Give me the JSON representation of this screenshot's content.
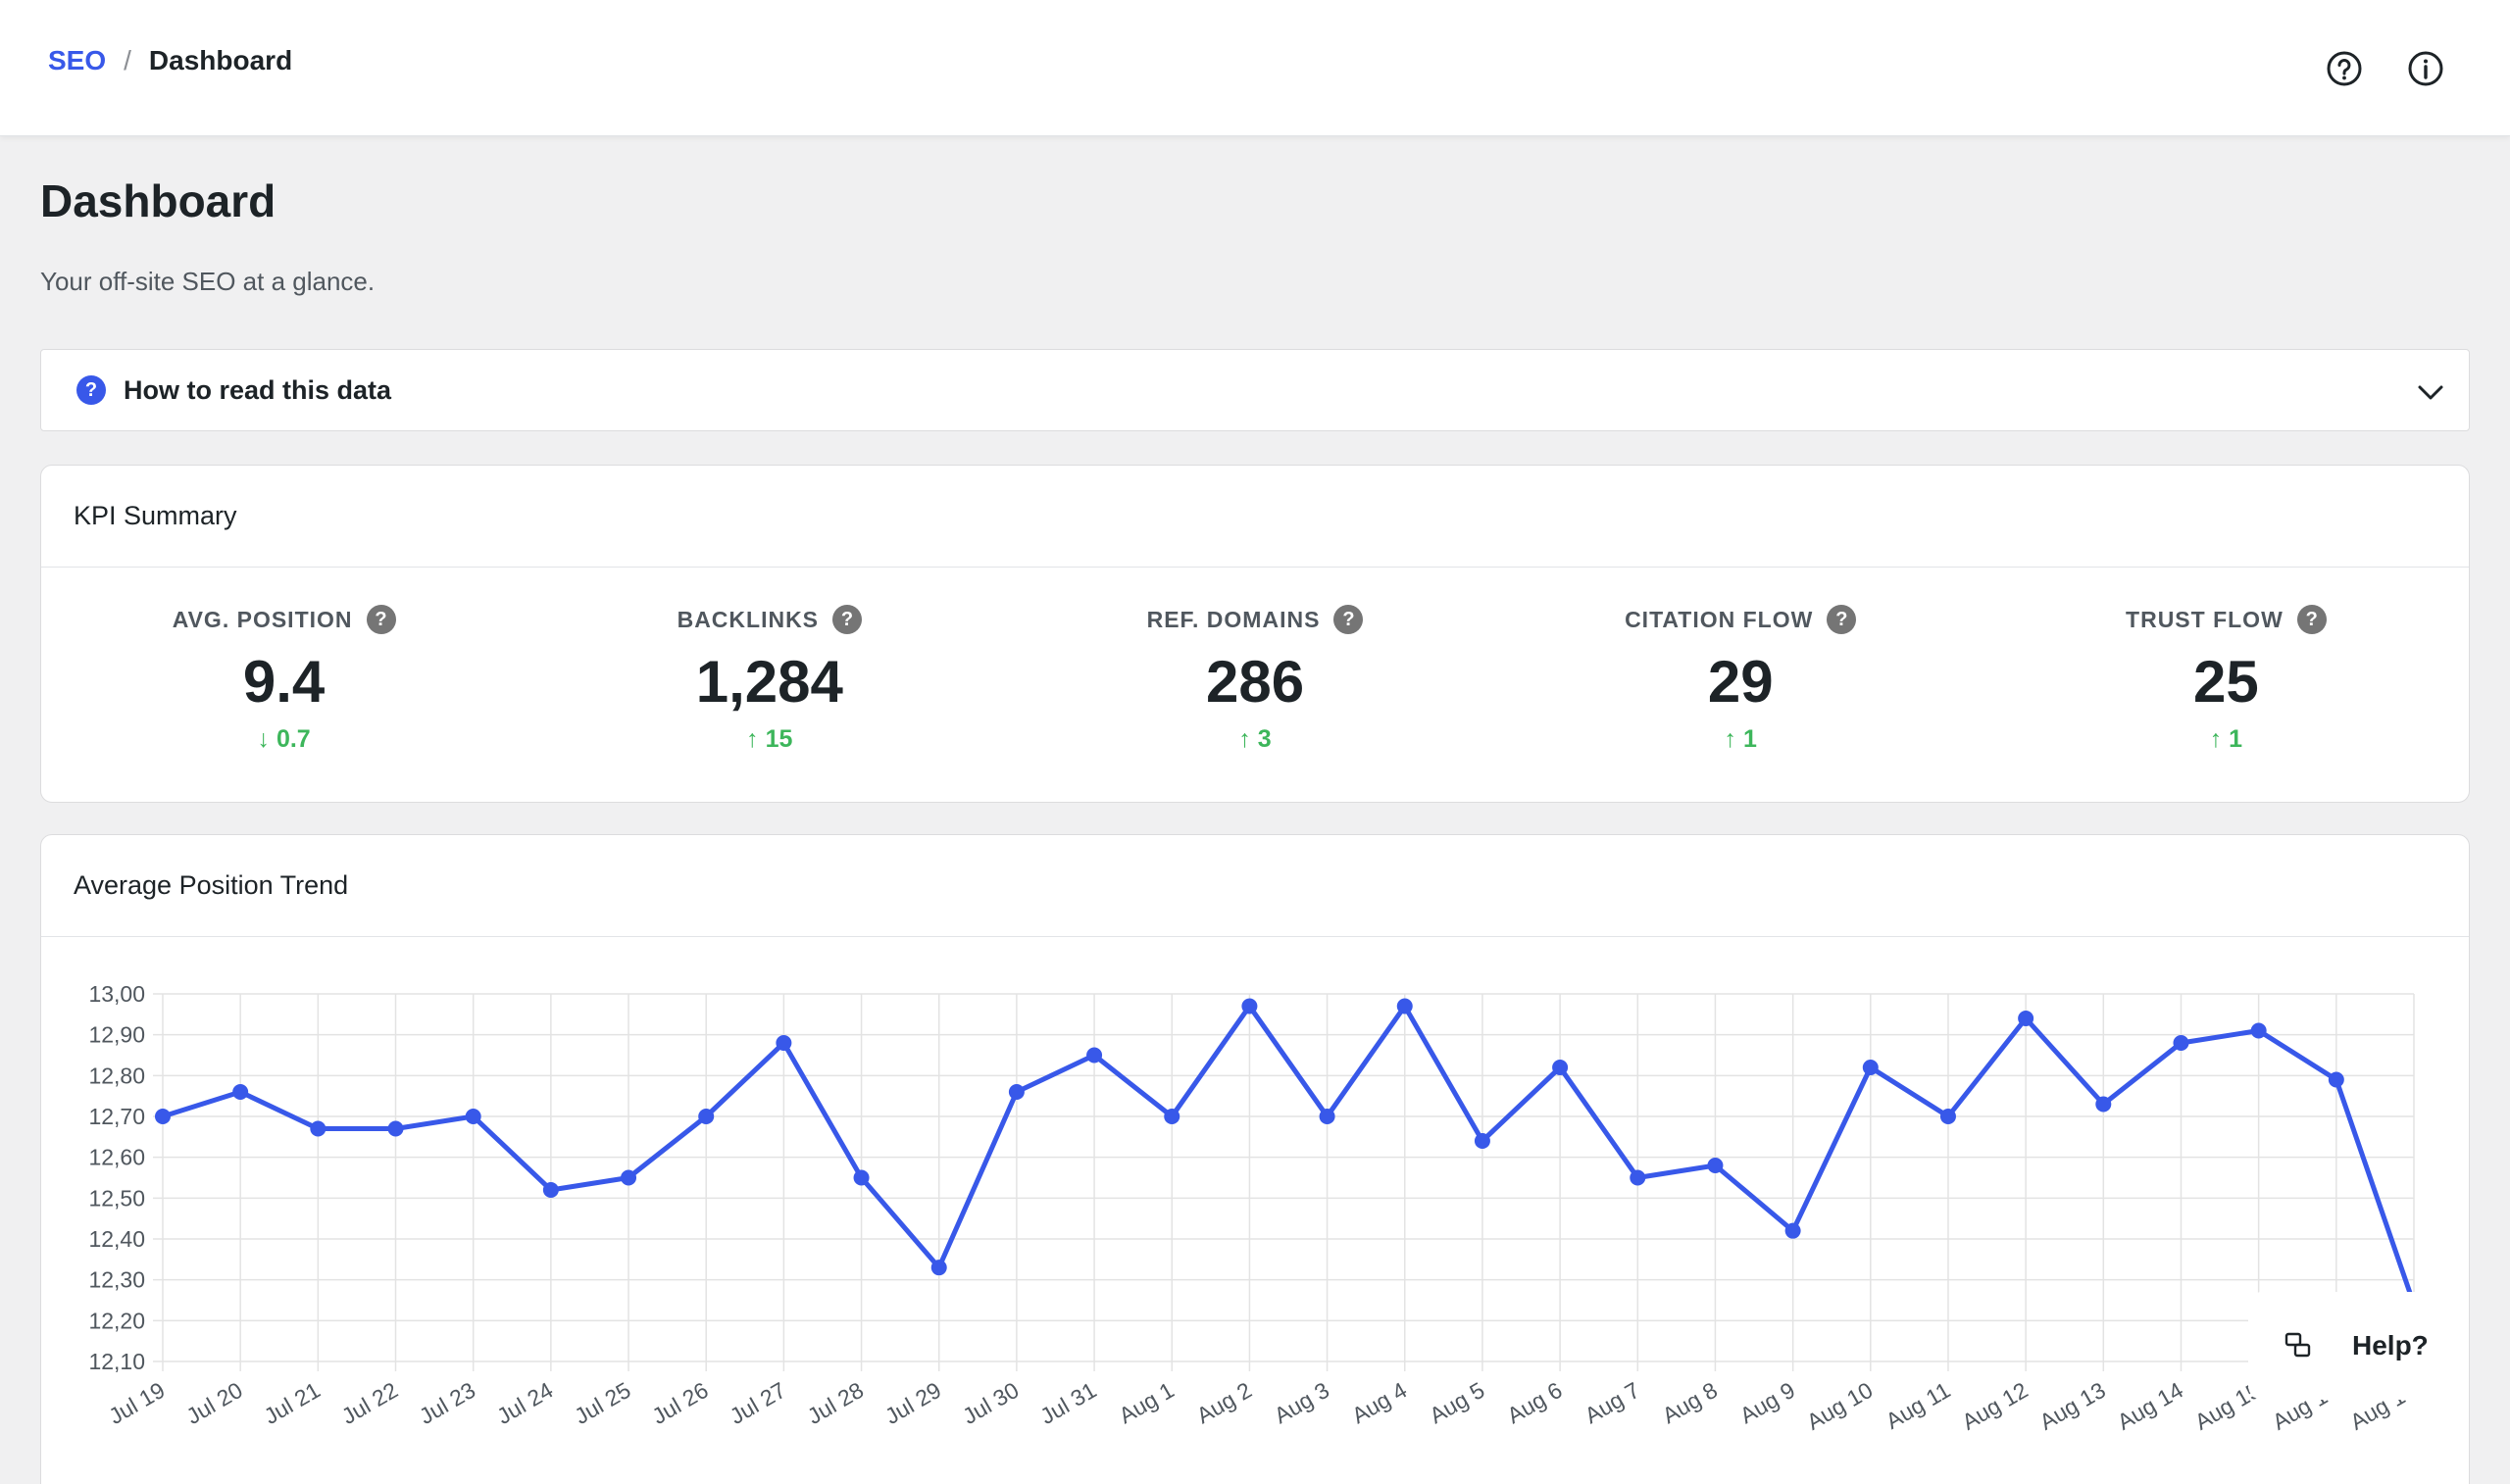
{
  "breadcrumb": {
    "root": "SEO",
    "separator": "/",
    "current": "Dashboard"
  },
  "page": {
    "title": "Dashboard",
    "subtitle": "Your off-site SEO at a glance."
  },
  "howto": {
    "label": "How to read this data"
  },
  "kpi": {
    "title": "KPI Summary",
    "items": [
      {
        "label": "AVG. POSITION",
        "value": "9.4",
        "delta": "↓ 0.7"
      },
      {
        "label": "BACKLINKS",
        "value": "1,284",
        "delta": "↑ 15"
      },
      {
        "label": "REF. DOMAINS",
        "value": "286",
        "delta": "↑ 3"
      },
      {
        "label": "CITATION FLOW",
        "value": "29",
        "delta": "↑ 1"
      },
      {
        "label": "TRUST FLOW",
        "value": "25",
        "delta": "↑ 1"
      }
    ]
  },
  "chart_card": {
    "title": "Average Position Trend"
  },
  "help_widget": {
    "label": "Help?"
  },
  "colors": {
    "accent": "#3858e9",
    "positive": "#3db65b"
  },
  "chart_data": {
    "type": "line",
    "categories": [
      "Jul 19",
      "Jul 20",
      "Jul 21",
      "Jul 22",
      "Jul 23",
      "Jul 24",
      "Jul 25",
      "Jul 26",
      "Jul 27",
      "Jul 28",
      "Jul 29",
      "Jul 30",
      "Jul 31",
      "Aug 1",
      "Aug 2",
      "Aug 3",
      "Aug 4",
      "Aug 5",
      "Aug 6",
      "Aug 7",
      "Aug 8",
      "Aug 9",
      "Aug 10",
      "Aug 11",
      "Aug 12",
      "Aug 13",
      "Aug 14",
      "Aug 15",
      "Aug 16",
      "Aug 17"
    ],
    "values": [
      12.7,
      12.76,
      12.67,
      12.67,
      12.7,
      12.52,
      12.55,
      12.7,
      12.88,
      12.55,
      12.33,
      12.76,
      12.85,
      12.7,
      12.97,
      12.7,
      12.97,
      12.64,
      12.82,
      12.55,
      12.58,
      12.42,
      12.82,
      12.7,
      12.94,
      12.73,
      12.88,
      12.91,
      12.79,
      12.24
    ],
    "ylim": [
      12.1,
      13.0
    ],
    "yticks": [
      "13,00",
      "12,90",
      "12,80",
      "12,70",
      "12,60",
      "12,50",
      "12,40",
      "12,30",
      "12,20",
      "12,10"
    ],
    "grid": true,
    "color": "#3858e9"
  }
}
